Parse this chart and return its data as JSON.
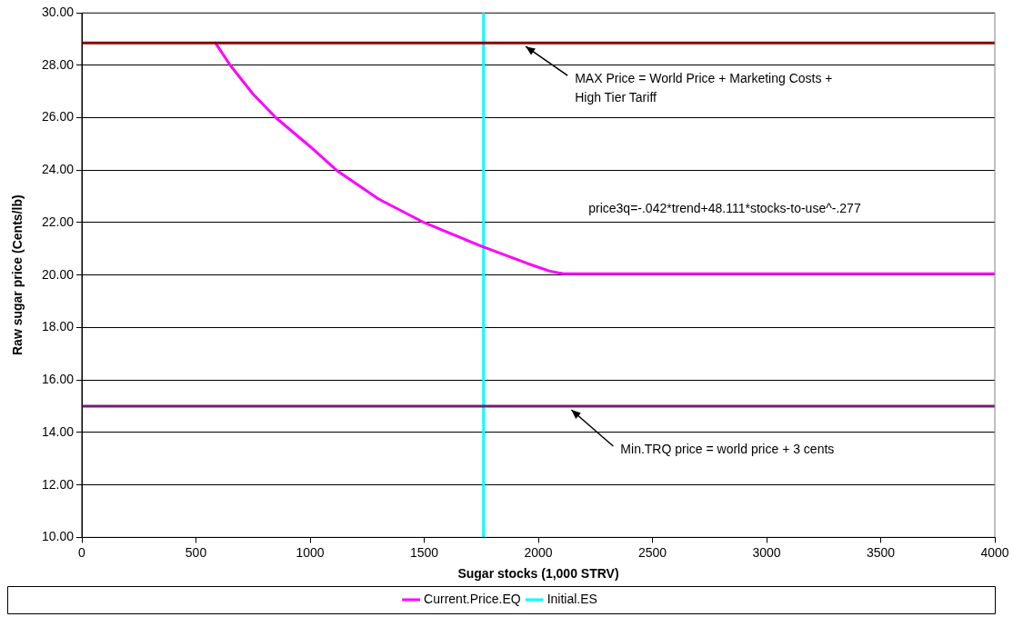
{
  "chart_data": {
    "type": "line",
    "xlabel": "Sugar stocks (1,000 STRV)",
    "ylabel": "Raw sugar price (Cents/lb)",
    "xlim": [
      0,
      4000
    ],
    "xticks": [
      0,
      500,
      1000,
      1500,
      2000,
      2500,
      3000,
      3500,
      4000
    ],
    "ylim": [
      10,
      30
    ],
    "yticks": [
      {
        "value": 10,
        "label": "10.00"
      },
      {
        "value": 12,
        "label": "12.00"
      },
      {
        "value": 14,
        "label": "14.00"
      },
      {
        "value": 16,
        "label": "16.00"
      },
      {
        "value": 18,
        "label": "18.00"
      },
      {
        "value": 20,
        "label": "20.00"
      },
      {
        "value": 22,
        "label": "22.00"
      },
      {
        "value": 24,
        "label": "24.00"
      },
      {
        "value": 26,
        "label": "26.00"
      },
      {
        "value": 28,
        "label": "28.00"
      },
      {
        "value": 30,
        "label": "30.00"
      }
    ],
    "grid": "y",
    "legend": "bottom",
    "marker": "none",
    "line_style": "solid",
    "series": [
      {
        "name": "Current.Price.EQ",
        "color": "#ff00ff",
        "x": [
          585,
          650,
          750,
          850,
          1000,
          1115,
          1300,
          1500,
          1750,
          1950,
          2050,
          2110,
          2500,
          3000,
          3500,
          4000
        ],
        "values": [
          28.85,
          28.0,
          26.9,
          26.0,
          24.9,
          24.0,
          22.9,
          22.0,
          21.1,
          20.45,
          20.15,
          20.05,
          20.05,
          20.05,
          20.05,
          20.05
        ]
      },
      {
        "name": "Initial.ES",
        "color": "#00ffff",
        "x": [
          1760,
          1760
        ],
        "values": [
          10,
          30
        ]
      }
    ],
    "ref_lines": [
      {
        "axis": "y",
        "value": 28.85,
        "label": "MAX Price = World Price + Marketing Costs + High Tier Tariff",
        "color": "#8b0000"
      },
      {
        "axis": "y",
        "value": 15.0,
        "label": "Min.TRQ price = world price + 3 cents",
        "color": "#7a1a7a"
      }
    ],
    "annotations": [
      "price3q=-.042*trend+48.111*stocks-to-use^-.277"
    ]
  }
}
